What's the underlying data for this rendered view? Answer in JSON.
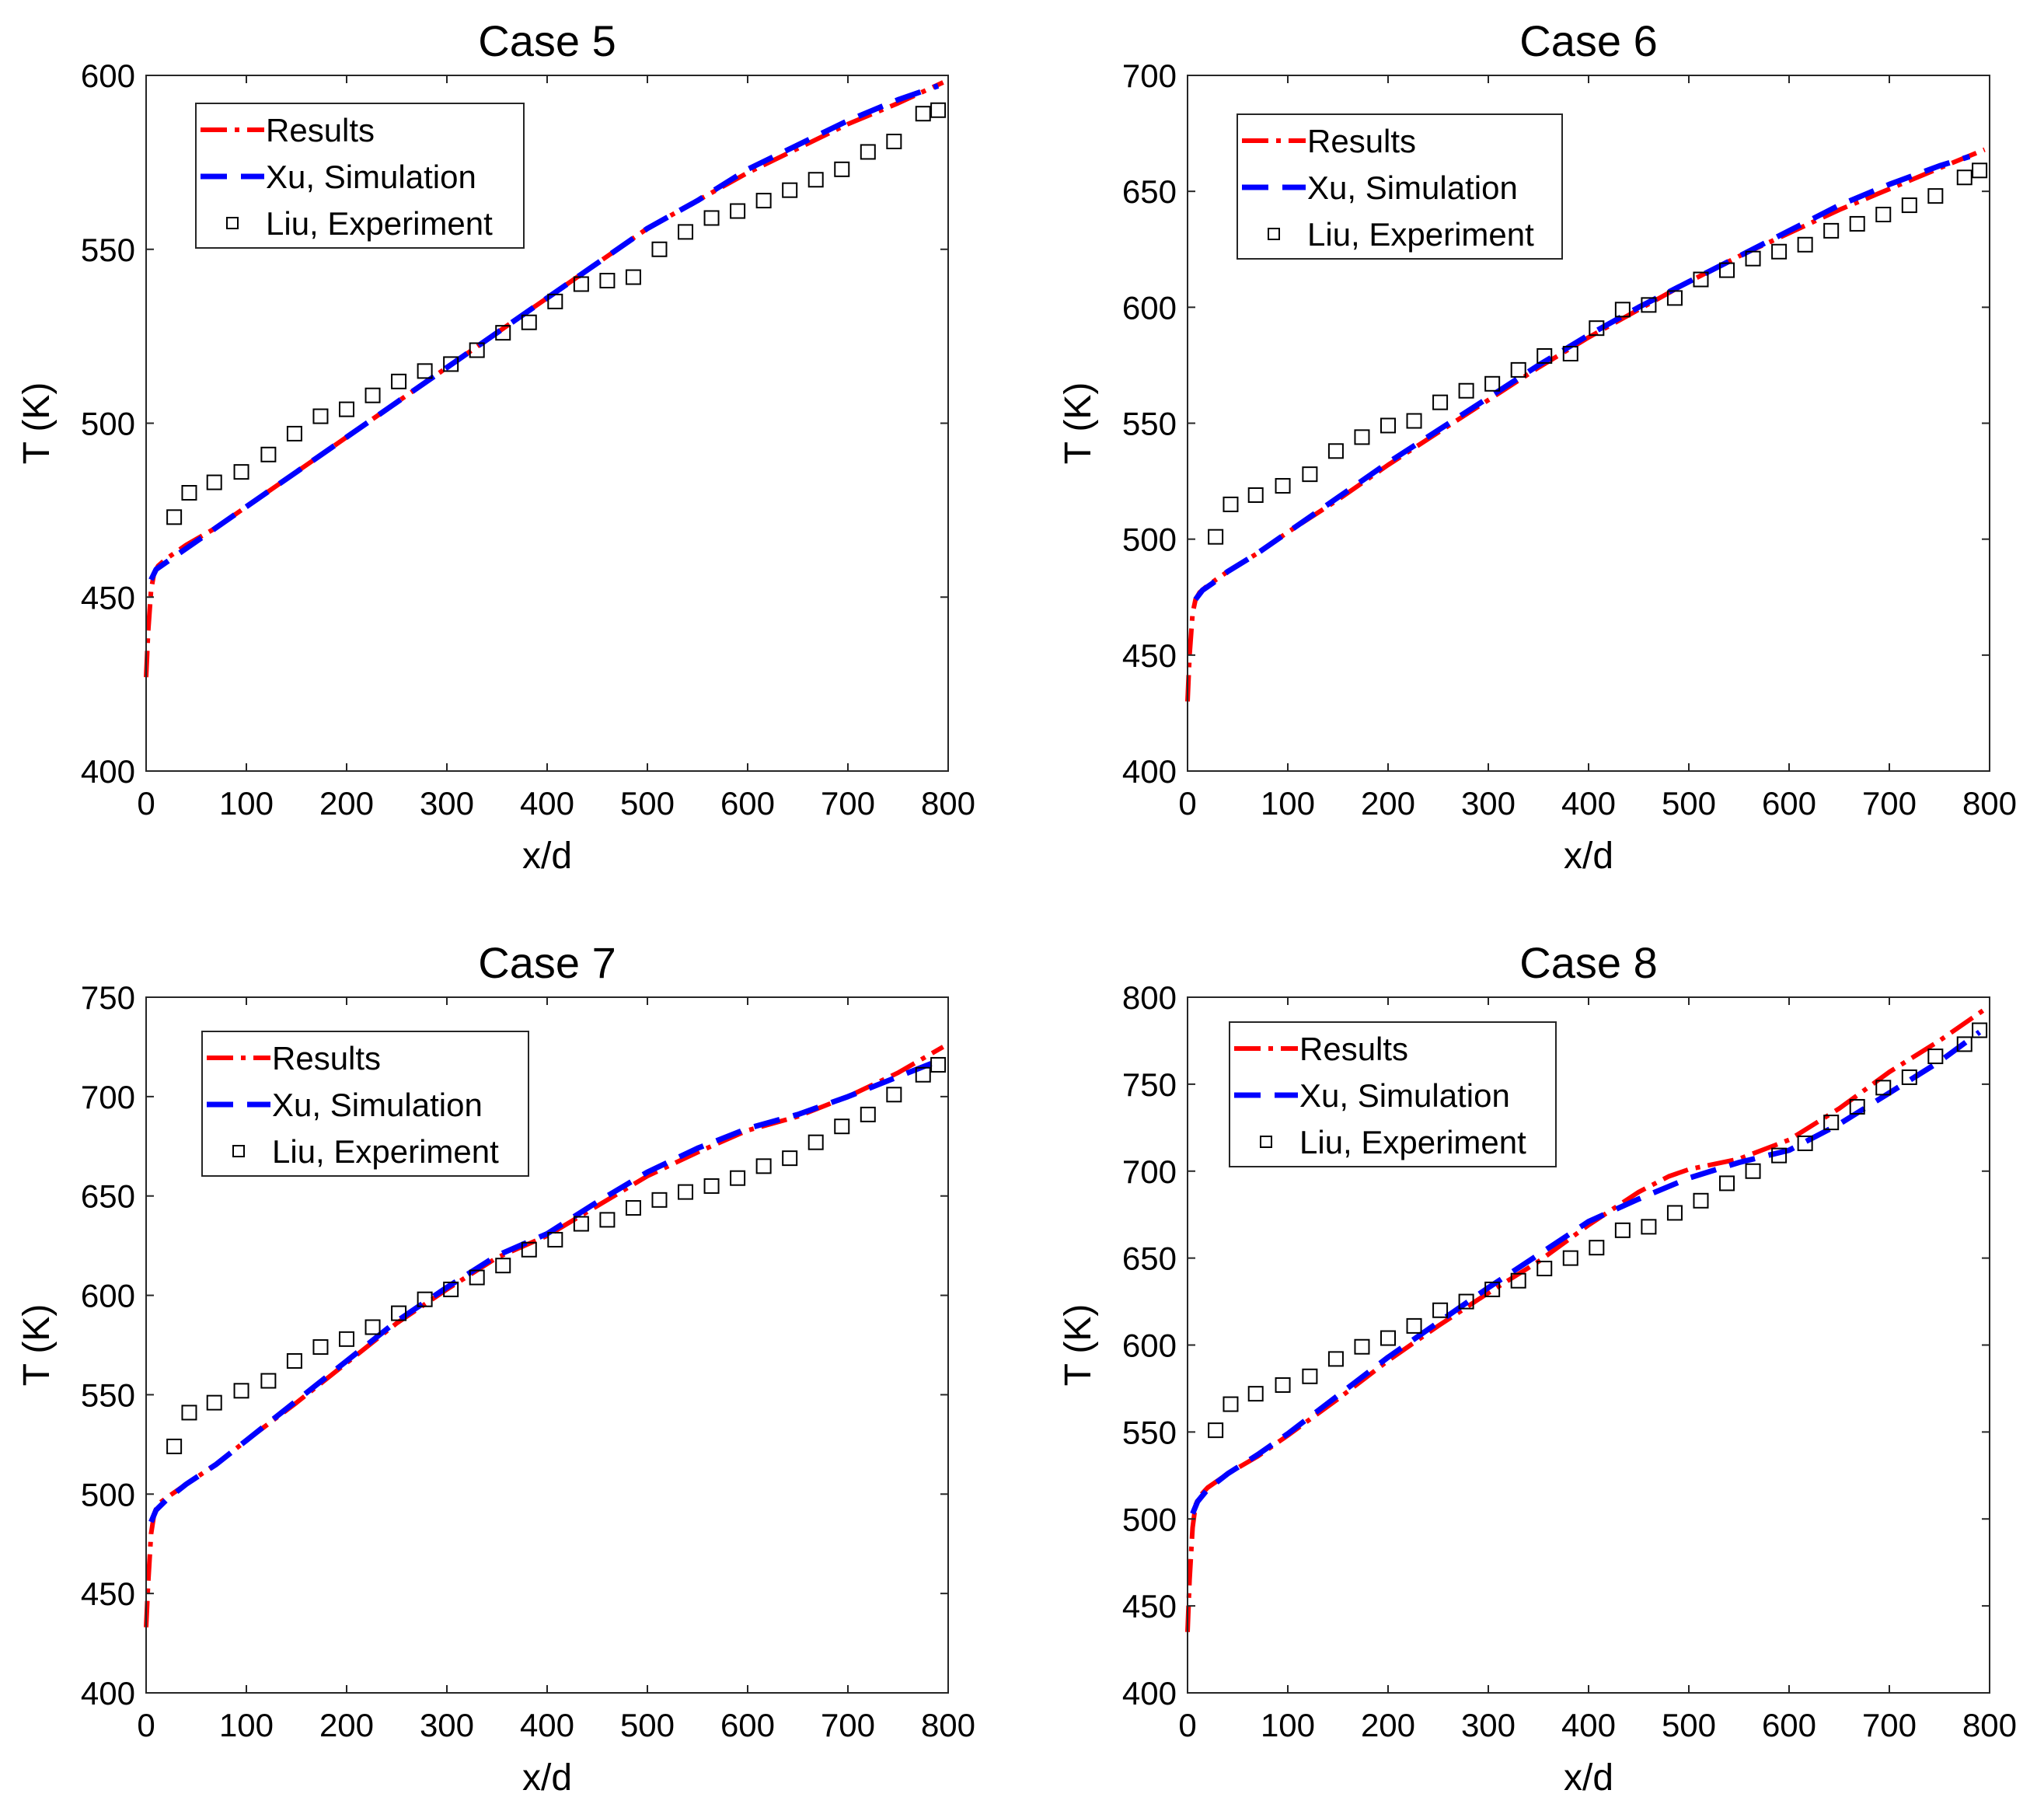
{
  "chart_data": [
    {
      "type": "line",
      "title": "Case 5",
      "xlabel": "x/d",
      "ylabel": "T (K)",
      "xlim": [
        0,
        800
      ],
      "ylim": [
        400,
        600
      ],
      "xticks": [
        "0",
        "100",
        "200",
        "300",
        "400",
        "500",
        "600",
        "700",
        "800"
      ],
      "yticks": [
        "400",
        "450",
        "500",
        "550",
        "600"
      ],
      "legend_position": "top-left",
      "series": [
        {
          "name": "Results",
          "style": "dash-dot",
          "color": "#ff0000",
          "x": [
            0,
            2,
            5,
            8,
            12,
            20,
            40,
            70,
            100,
            150,
            200,
            250,
            300,
            350,
            400,
            450,
            500,
            550,
            600,
            650,
            700,
            750,
            795
          ],
          "y": [
            427,
            440,
            452,
            457,
            459,
            461,
            465,
            470,
            476,
            486,
            496,
            506,
            516,
            526,
            536,
            546,
            556,
            564,
            572,
            579,
            586,
            592,
            598
          ]
        },
        {
          "name": "Xu, Simulation",
          "style": "dash",
          "color": "#0000ff",
          "x": [
            5,
            10,
            20,
            40,
            70,
            100,
            150,
            200,
            250,
            300,
            350,
            400,
            450,
            500,
            550,
            600,
            650,
            700,
            750,
            790
          ],
          "y": [
            455,
            458,
            460,
            464,
            470,
            476,
            486,
            496,
            506,
            516,
            526,
            536,
            546,
            556,
            564,
            573,
            580,
            587,
            593,
            597
          ]
        },
        {
          "name": "Liu, Experiment",
          "style": "marker",
          "color": "#000000",
          "x": [
            28,
            43,
            68,
            95,
            122,
            148,
            174,
            200,
            226,
            252,
            278,
            304,
            330,
            356,
            382,
            408,
            434,
            460,
            486,
            512,
            538,
            564,
            590,
            616,
            642,
            668,
            694,
            720,
            746,
            775,
            790
          ],
          "y": [
            473,
            480,
            483,
            486,
            491,
            497,
            502,
            504,
            508,
            512,
            515,
            517,
            521,
            526,
            529,
            535,
            540,
            541,
            542,
            550,
            555,
            559,
            561,
            564,
            567,
            570,
            573,
            578,
            581,
            589,
            590
          ]
        }
      ]
    },
    {
      "type": "line",
      "title": "Case 6",
      "xlabel": "x/d",
      "ylabel": "T (K)",
      "xlim": [
        0,
        800
      ],
      "ylim": [
        400,
        700
      ],
      "xticks": [
        "0",
        "100",
        "200",
        "300",
        "400",
        "500",
        "600",
        "700",
        "800"
      ],
      "yticks": [
        "400",
        "450",
        "500",
        "550",
        "600",
        "650",
        "700"
      ],
      "legend_position": "top-left",
      "series": [
        {
          "name": "Results",
          "style": "dash-dot",
          "color": "#ff0000",
          "x": [
            0,
            2,
            5,
            8,
            12,
            20,
            40,
            70,
            100,
            150,
            200,
            250,
            300,
            350,
            400,
            450,
            500,
            550,
            600,
            650,
            700,
            750,
            795
          ],
          "y": [
            430,
            450,
            468,
            474,
            477,
            480,
            486,
            494,
            503,
            517,
            532,
            546,
            560,
            574,
            587,
            599,
            611,
            622,
            632,
            642,
            651,
            660,
            668
          ]
        },
        {
          "name": "Xu, Simulation",
          "style": "dash",
          "color": "#0000ff",
          "x": [
            8,
            15,
            25,
            40,
            70,
            100,
            150,
            200,
            250,
            300,
            350,
            400,
            450,
            500,
            550,
            600,
            650,
            700,
            750,
            780
          ],
          "y": [
            474,
            478,
            481,
            486,
            494,
            503,
            518,
            533,
            547,
            561,
            575,
            588,
            600,
            611,
            622,
            633,
            644,
            653,
            661,
            665
          ]
        },
        {
          "name": "Liu, Experiment",
          "style": "marker",
          "color": "#000000",
          "x": [
            28,
            43,
            68,
            95,
            122,
            148,
            174,
            200,
            226,
            252,
            278,
            304,
            330,
            356,
            382,
            408,
            434,
            460,
            486,
            512,
            538,
            564,
            590,
            616,
            642,
            668,
            694,
            720,
            746,
            775,
            790
          ],
          "y": [
            501,
            515,
            519,
            523,
            528,
            538,
            544,
            549,
            551,
            559,
            564,
            567,
            573,
            579,
            580,
            591,
            599,
            601,
            604,
            612,
            616,
            621,
            624,
            627,
            633,
            636,
            640,
            644,
            648,
            656,
            659
          ]
        }
      ]
    },
    {
      "type": "line",
      "title": "Case 7",
      "xlabel": "x/d",
      "ylabel": "T (K)",
      "xlim": [
        0,
        800
      ],
      "ylim": [
        400,
        750
      ],
      "xticks": [
        "0",
        "100",
        "200",
        "300",
        "400",
        "500",
        "600",
        "700",
        "800"
      ],
      "yticks": [
        "400",
        "450",
        "500",
        "550",
        "600",
        "650",
        "700",
        "750"
      ],
      "legend_position": "top-left",
      "series": [
        {
          "name": "Results",
          "style": "dash-dot",
          "color": "#ff0000",
          "x": [
            0,
            2,
            5,
            8,
            12,
            20,
            40,
            70,
            100,
            150,
            200,
            250,
            300,
            350,
            400,
            450,
            500,
            550,
            600,
            650,
            700,
            750,
            795
          ],
          "y": [
            433,
            455,
            480,
            490,
            495,
            498,
            505,
            515,
            527,
            546,
            566,
            586,
            603,
            619,
            630,
            645,
            660,
            672,
            683,
            690,
            700,
            712,
            725
          ]
        },
        {
          "name": "Xu, Simulation",
          "style": "dash",
          "color": "#0000ff",
          "x": [
            5,
            10,
            20,
            40,
            70,
            100,
            150,
            200,
            250,
            300,
            350,
            400,
            450,
            500,
            550,
            600,
            650,
            700,
            750,
            790
          ],
          "y": [
            486,
            492,
            497,
            505,
            515,
            527,
            547,
            567,
            587,
            604,
            620,
            631,
            647,
            662,
            674,
            684,
            691,
            700,
            710,
            718
          ]
        },
        {
          "name": "Liu, Experiment",
          "style": "marker",
          "color": "#000000",
          "x": [
            28,
            43,
            68,
            95,
            122,
            148,
            174,
            200,
            226,
            252,
            278,
            304,
            330,
            356,
            382,
            408,
            434,
            460,
            486,
            512,
            538,
            564,
            590,
            616,
            642,
            668,
            694,
            720,
            746,
            775,
            790
          ],
          "y": [
            524,
            541,
            546,
            552,
            557,
            567,
            574,
            578,
            584,
            591,
            598,
            603,
            609,
            615,
            623,
            628,
            636,
            638,
            644,
            648,
            652,
            655,
            659,
            665,
            669,
            677,
            685,
            691,
            701,
            711,
            716
          ]
        }
      ]
    },
    {
      "type": "line",
      "title": "Case 8",
      "xlabel": "x/d",
      "ylabel": "T (K)",
      "xlim": [
        0,
        800
      ],
      "ylim": [
        400,
        800
      ],
      "xticks": [
        "0",
        "100",
        "200",
        "300",
        "400",
        "500",
        "600",
        "700",
        "800"
      ],
      "yticks": [
        "400",
        "450",
        "500",
        "550",
        "600",
        "650",
        "700",
        "750",
        "800"
      ],
      "legend_position": "top-left",
      "series": [
        {
          "name": "Results",
          "style": "dash-dot",
          "color": "#ff0000",
          "x": [
            0,
            2,
            5,
            8,
            12,
            20,
            40,
            70,
            100,
            150,
            200,
            250,
            300,
            350,
            400,
            450,
            480,
            500,
            550,
            600,
            650,
            700,
            750,
            795
          ],
          "y": [
            435,
            465,
            495,
            508,
            513,
            518,
            526,
            536,
            548,
            569,
            591,
            611,
            630,
            648,
            669,
            688,
            697,
            701,
            707,
            718,
            736,
            757,
            775,
            793
          ]
        },
        {
          "name": "Xu, Simulation",
          "style": "dash",
          "color": "#0000ff",
          "x": [
            5,
            10,
            20,
            40,
            70,
            100,
            150,
            200,
            250,
            300,
            350,
            400,
            450,
            500,
            550,
            600,
            650,
            700,
            750,
            790
          ],
          "y": [
            503,
            510,
            517,
            526,
            537,
            549,
            571,
            593,
            613,
            633,
            652,
            671,
            684,
            696,
            705,
            712,
            727,
            745,
            763,
            780
          ]
        },
        {
          "name": "Liu, Experiment",
          "style": "marker",
          "color": "#000000",
          "x": [
            28,
            43,
            68,
            95,
            122,
            148,
            174,
            200,
            226,
            252,
            278,
            304,
            330,
            356,
            382,
            408,
            434,
            460,
            486,
            512,
            538,
            564,
            590,
            616,
            642,
            668,
            694,
            720,
            746,
            775,
            790
          ],
          "y": [
            551,
            566,
            572,
            577,
            582,
            592,
            599,
            604,
            611,
            620,
            625,
            632,
            637,
            644,
            650,
            656,
            666,
            668,
            676,
            683,
            693,
            700,
            709,
            716,
            728,
            737,
            748,
            754,
            766,
            773,
            781
          ]
        }
      ]
    }
  ]
}
